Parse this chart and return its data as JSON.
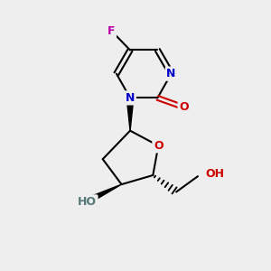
{
  "bg_color": "#eeeeee",
  "colors": {
    "bond": "#000000",
    "N": "#0000cc",
    "O": "#cc0000",
    "F": "#bb00aa",
    "OH_sugar": "#557777"
  },
  "lw": 1.5,
  "fs": 9.0
}
